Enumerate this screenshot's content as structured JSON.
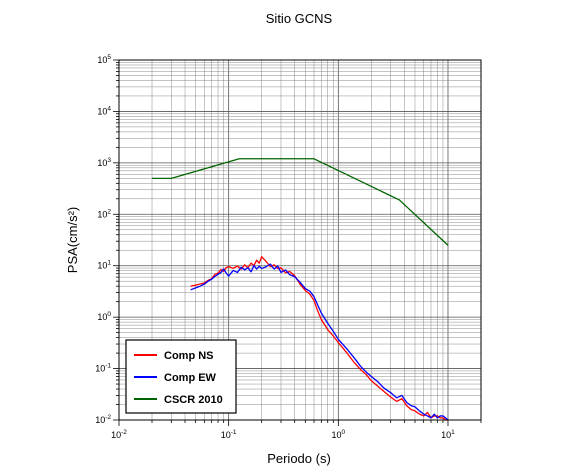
{
  "chart_data": {
    "type": "line",
    "title": "Sitio GCNS",
    "xlabel": "Periodo (s)",
    "ylabel": "PSA(cm/s²)",
    "xscale": "log",
    "yscale": "log",
    "xlim": [
      0.01,
      20
    ],
    "ylim": [
      0.01,
      100000
    ],
    "grid": true,
    "legend_position": "bottom-left",
    "x_tick_labels": [
      {
        "base": "10",
        "exp": "-2"
      },
      {
        "base": "10",
        "exp": "-1"
      },
      {
        "base": "10",
        "exp": "0"
      },
      {
        "base": "10",
        "exp": "1"
      }
    ],
    "y_tick_labels": [
      {
        "base": "10",
        "exp": "-2"
      },
      {
        "base": "10",
        "exp": "-1"
      },
      {
        "base": "10",
        "exp": "0"
      },
      {
        "base": "10",
        "exp": "1"
      },
      {
        "base": "10",
        "exp": "2"
      },
      {
        "base": "10",
        "exp": "3"
      },
      {
        "base": "10",
        "exp": "4"
      },
      {
        "base": "10",
        "exp": "5"
      }
    ],
    "series": [
      {
        "name": "Comp NS",
        "color": "#ff0000",
        "x": [
          0.045,
          0.05,
          0.055,
          0.06,
          0.065,
          0.07,
          0.075,
          0.08,
          0.085,
          0.09,
          0.095,
          0.1,
          0.11,
          0.12,
          0.13,
          0.14,
          0.15,
          0.16,
          0.17,
          0.18,
          0.19,
          0.2,
          0.22,
          0.24,
          0.26,
          0.28,
          0.3,
          0.33,
          0.36,
          0.4,
          0.45,
          0.5,
          0.55,
          0.6,
          0.65,
          0.7,
          0.8,
          0.9,
          1.0,
          1.2,
          1.4,
          1.6,
          1.8,
          2.0,
          2.3,
          2.6,
          3.0,
          3.4,
          3.8,
          4.2,
          4.6,
          5.0,
          5.5,
          6.0,
          6.5,
          7.0,
          7.5,
          8.0,
          8.5,
          9.0,
          9.5,
          10.0
        ],
        "y": [
          4.0,
          4.2,
          4.4,
          4.6,
          5.2,
          5.6,
          6.8,
          7.2,
          8.4,
          7.8,
          9.2,
          9.6,
          8.9,
          9.9,
          8.6,
          10.4,
          9.1,
          11.2,
          10.1,
          12.8,
          11.2,
          15.0,
          12.0,
          9.6,
          10.4,
          8.8,
          9.1,
          7.3,
          7.7,
          6.4,
          4.3,
          3.3,
          2.8,
          2.1,
          1.3,
          0.9,
          0.57,
          0.43,
          0.32,
          0.2,
          0.13,
          0.095,
          0.076,
          0.058,
          0.045,
          0.036,
          0.028,
          0.023,
          0.026,
          0.019,
          0.016,
          0.015,
          0.013,
          0.012,
          0.014,
          0.011,
          0.012,
          0.012,
          0.011,
          0.011,
          0.01,
          0.01
        ]
      },
      {
        "name": "Comp EW",
        "color": "#0000ff",
        "x": [
          0.045,
          0.05,
          0.055,
          0.06,
          0.065,
          0.07,
          0.075,
          0.08,
          0.085,
          0.09,
          0.095,
          0.1,
          0.11,
          0.12,
          0.13,
          0.14,
          0.15,
          0.16,
          0.17,
          0.18,
          0.19,
          0.2,
          0.22,
          0.24,
          0.26,
          0.28,
          0.3,
          0.33,
          0.36,
          0.4,
          0.45,
          0.5,
          0.55,
          0.6,
          0.65,
          0.7,
          0.8,
          0.9,
          1.0,
          1.2,
          1.4,
          1.6,
          1.8,
          2.0,
          2.3,
          2.6,
          3.0,
          3.4,
          3.8,
          4.2,
          4.6,
          5.0,
          5.5,
          6.0,
          6.5,
          7.0,
          7.5,
          8.0,
          8.5,
          9.0,
          9.5,
          10.0
        ],
        "y": [
          3.4,
          3.7,
          4.0,
          4.4,
          5.0,
          5.5,
          6.2,
          6.8,
          7.4,
          8.6,
          7.2,
          6.3,
          8.1,
          7.4,
          9.3,
          8.3,
          9.1,
          7.6,
          10.1,
          8.6,
          9.8,
          8.8,
          9.6,
          10.8,
          8.6,
          9.9,
          7.4,
          8.3,
          6.7,
          6.1,
          4.7,
          3.6,
          3.2,
          2.5,
          1.7,
          1.2,
          0.76,
          0.53,
          0.37,
          0.24,
          0.16,
          0.11,
          0.085,
          0.07,
          0.055,
          0.042,
          0.034,
          0.027,
          0.03,
          0.022,
          0.019,
          0.018,
          0.015,
          0.013,
          0.012,
          0.011,
          0.013,
          0.011,
          0.012,
          0.012,
          0.011,
          0.01
        ]
      },
      {
        "name": "CSCR 2010",
        "color": "#006400",
        "x": [
          0.02,
          0.03,
          0.125,
          0.6,
          3.6,
          10
        ],
        "y": [
          500,
          500,
          1200,
          1200,
          190,
          25
        ]
      }
    ]
  }
}
